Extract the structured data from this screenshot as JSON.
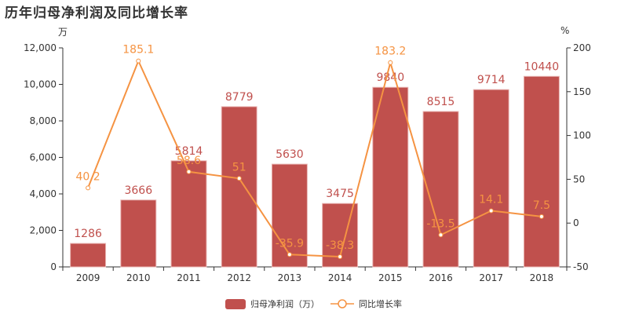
{
  "header": {
    "title": "历年归母净利润及同比增长率"
  },
  "axes": {
    "left_unit": "万",
    "right_unit": "%"
  },
  "legend": {
    "bar_label": "归母净利润（万）",
    "line_label": "同比增长率"
  },
  "colors": {
    "bar": "#c0504d",
    "bar_label": "#c0504d",
    "line": "#f59342",
    "line_label": "#f59342"
  },
  "chart_data": {
    "type": "bar",
    "title": "历年归母净利润及同比增长率",
    "categories": [
      "2009",
      "2010",
      "2011",
      "2012",
      "2013",
      "2014",
      "2015",
      "2016",
      "2017",
      "2018"
    ],
    "series": [
      {
        "name": "归母净利润（万）",
        "type": "bar",
        "axis": "left",
        "values": [
          1286,
          3666,
          5814,
          8779,
          5630,
          3475,
          9840,
          8515,
          9714,
          10440
        ]
      },
      {
        "name": "同比增长率",
        "type": "line",
        "axis": "right",
        "values": [
          40.2,
          185.1,
          58.6,
          51,
          -35.9,
          -38.3,
          183.2,
          -13.5,
          14.1,
          7.5
        ]
      }
    ],
    "ylabel": "万",
    "ylim": [
      0,
      12000
    ],
    "yticks": [
      "0",
      "2,000",
      "4,000",
      "6,000",
      "8,000",
      "10,000",
      "12,000"
    ],
    "y2label": "%",
    "y2lim": [
      -50,
      200
    ],
    "y2ticks": [
      "-50",
      "0",
      "50",
      "100",
      "150",
      "200"
    ],
    "legend_position": "bottom",
    "grid": false
  }
}
